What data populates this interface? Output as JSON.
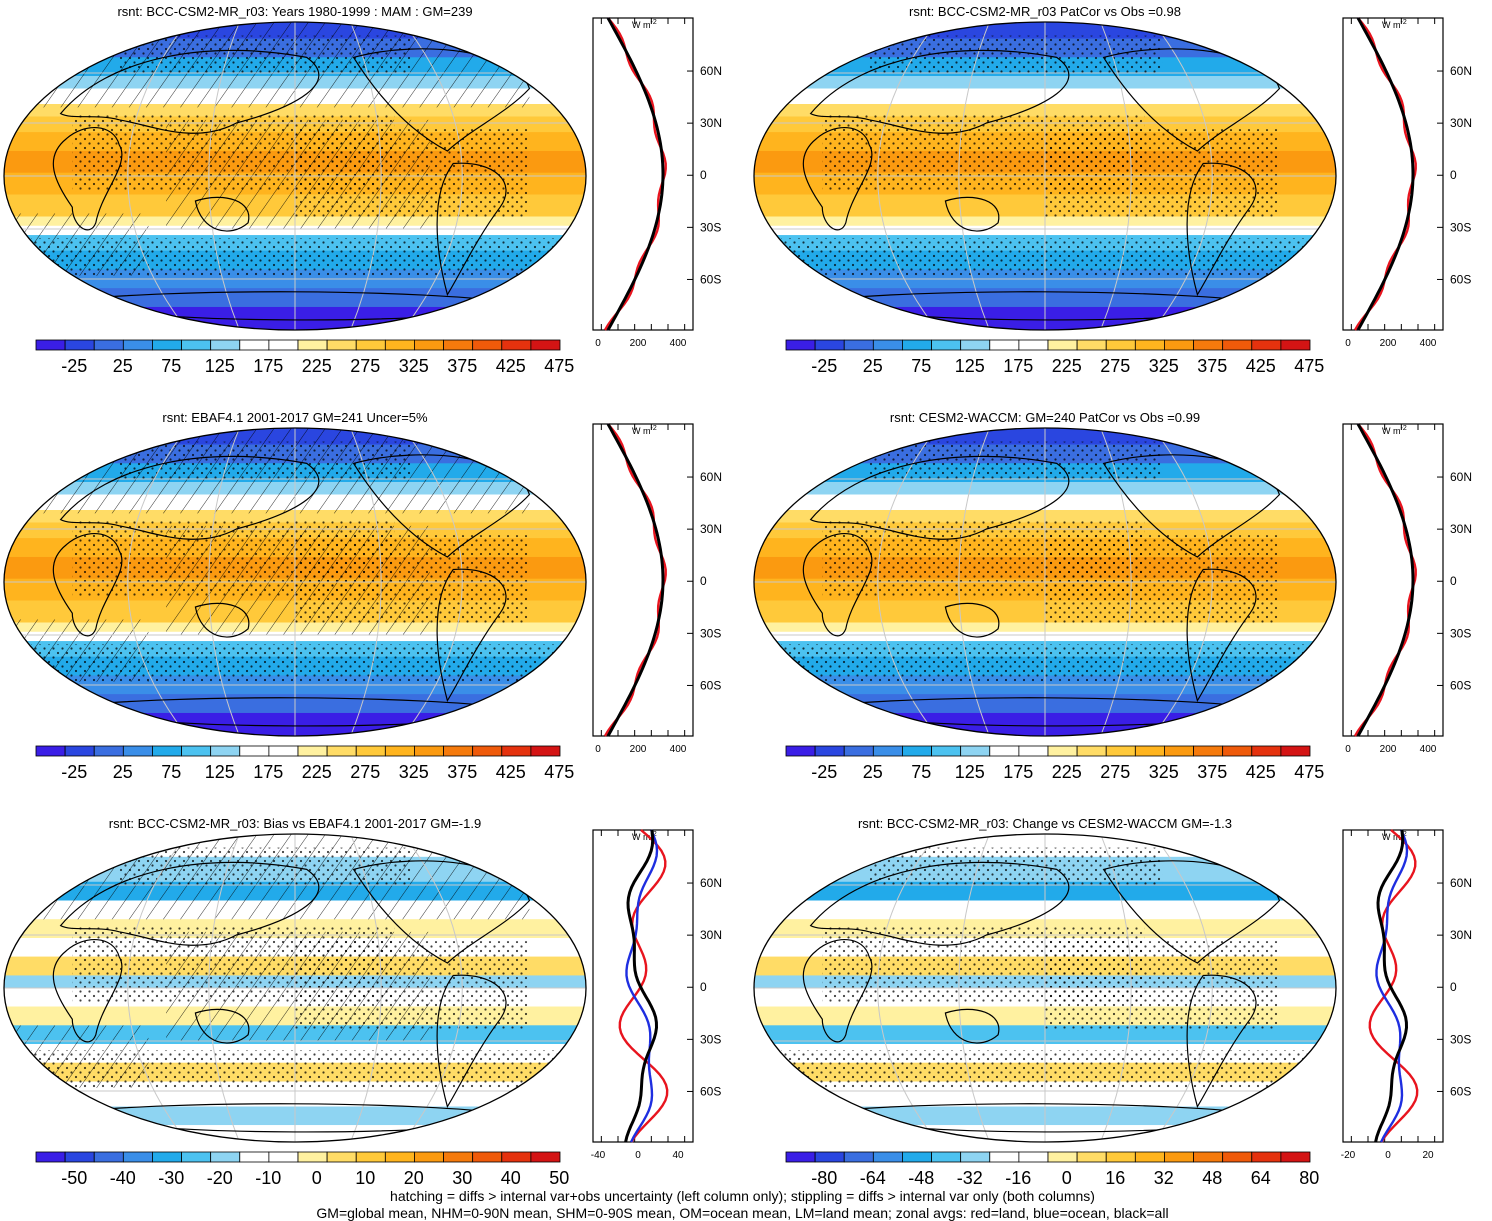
{
  "panels": [
    {
      "id": "p1",
      "title": "rsnt: BCC-CSM2-MR_r03: Years 1980-1999 : MAM : GM=239",
      "hatch": true,
      "mode": "abs",
      "zonal": {
        "unit": "W m",
        "unit_sup": "-2",
        "xticks": [
          "0",
          "200",
          "400"
        ]
      },
      "colorbar": {
        "labels": [
          "-25",
          "25",
          "75",
          "125",
          "175",
          "225",
          "275",
          "325",
          "375",
          "425",
          "475"
        ]
      }
    },
    {
      "id": "p2",
      "title": "rsnt: BCC-CSM2-MR_r03 PatCor vs Obs =0.98",
      "hatch": false,
      "mode": "abs",
      "zonal": {
        "unit": "W m",
        "unit_sup": "-2",
        "xticks": [
          "0",
          "200",
          "400"
        ]
      },
      "colorbar": {
        "labels": [
          "-25",
          "25",
          "75",
          "125",
          "175",
          "225",
          "275",
          "325",
          "375",
          "425",
          "475"
        ]
      }
    },
    {
      "id": "p3",
      "title": "rsnt: EBAF4.1 2001-2017 GM=241 Uncer=5%",
      "hatch": true,
      "mode": "abs",
      "zonal": {
        "unit": "W m",
        "unit_sup": "-2",
        "xticks": [
          "0",
          "200",
          "400"
        ]
      },
      "colorbar": {
        "labels": [
          "-25",
          "25",
          "75",
          "125",
          "175",
          "225",
          "275",
          "325",
          "375",
          "425",
          "475"
        ]
      }
    },
    {
      "id": "p4",
      "title": "rsnt: CESM2-WACCM: GM=240 PatCor vs Obs =0.99",
      "hatch": false,
      "mode": "abs",
      "zonal": {
        "unit": "W m",
        "unit_sup": "-2",
        "xticks": [
          "0",
          "200",
          "400"
        ]
      },
      "colorbar": {
        "labels": [
          "-25",
          "25",
          "75",
          "125",
          "175",
          "225",
          "275",
          "325",
          "375",
          "425",
          "475"
        ]
      }
    },
    {
      "id": "p5",
      "title": "rsnt: BCC-CSM2-MR_r03: Bias vs EBAF4.1 2001-2017 GM=-1.9",
      "hatch": true,
      "mode": "diff",
      "zonal": {
        "unit": "W m",
        "unit_sup": "-2",
        "xticks": [
          "-40",
          "0",
          "40"
        ]
      },
      "colorbar": {
        "labels": [
          "-50",
          "-40",
          "-30",
          "-20",
          "-10",
          "0",
          "10",
          "20",
          "30",
          "40",
          "50"
        ]
      }
    },
    {
      "id": "p6",
      "title": "rsnt: BCC-CSM2-MR_r03: Change vs CESM2-WACCM GM=-1.3",
      "hatch": false,
      "mode": "diff",
      "zonal": {
        "unit": "W m",
        "unit_sup": "-2",
        "xticks": [
          "-20",
          "0",
          "20"
        ]
      },
      "colorbar": {
        "labels": [
          "-80",
          "-64",
          "-48",
          "-32",
          "-16",
          "0",
          "16",
          "32",
          "48",
          "64",
          "80"
        ]
      }
    }
  ],
  "lat_labels": [
    "60N",
    "30N",
    "0",
    "30S",
    "60S"
  ],
  "colors": {
    "abs": [
      "#3a1ee6",
      "#2a46e0",
      "#3a6ee0",
      "#3a8ee8",
      "#22aaea",
      "#4cc2f0",
      "#8ed4f2",
      "#ffffff",
      "#ffffff",
      "#fff1a0",
      "#ffdc66",
      "#ffc93a",
      "#ffb41e",
      "#fb9a10",
      "#f57a0c",
      "#ef5a0a",
      "#e5320e",
      "#d41414"
    ],
    "diff": [
      "#3a1ee6",
      "#2a46e0",
      "#3a6ee0",
      "#3a8ee8",
      "#22aaea",
      "#4cc2f0",
      "#8ed4f2",
      "#ffffff",
      "#ffffff",
      "#fff1a0",
      "#ffdc66",
      "#ffc93a",
      "#ffb41e",
      "#fb9a10",
      "#f57a0c",
      "#ef5a0a",
      "#e5320e",
      "#d41414"
    ],
    "land_line": "#e8141e",
    "ocean_line": "#1e2ee0",
    "all_line": "#000000"
  },
  "footer": [
    "hatching = diffs > internal var+obs uncertainty (left column only); stippling = diffs > internal var only (both columns)",
    "GM=global mean, NHM=0-90N mean, SHM=0-90S mean, OM=ocean mean, LM=land mean; zonal avgs: red=land, blue=ocean, black=all"
  ]
}
